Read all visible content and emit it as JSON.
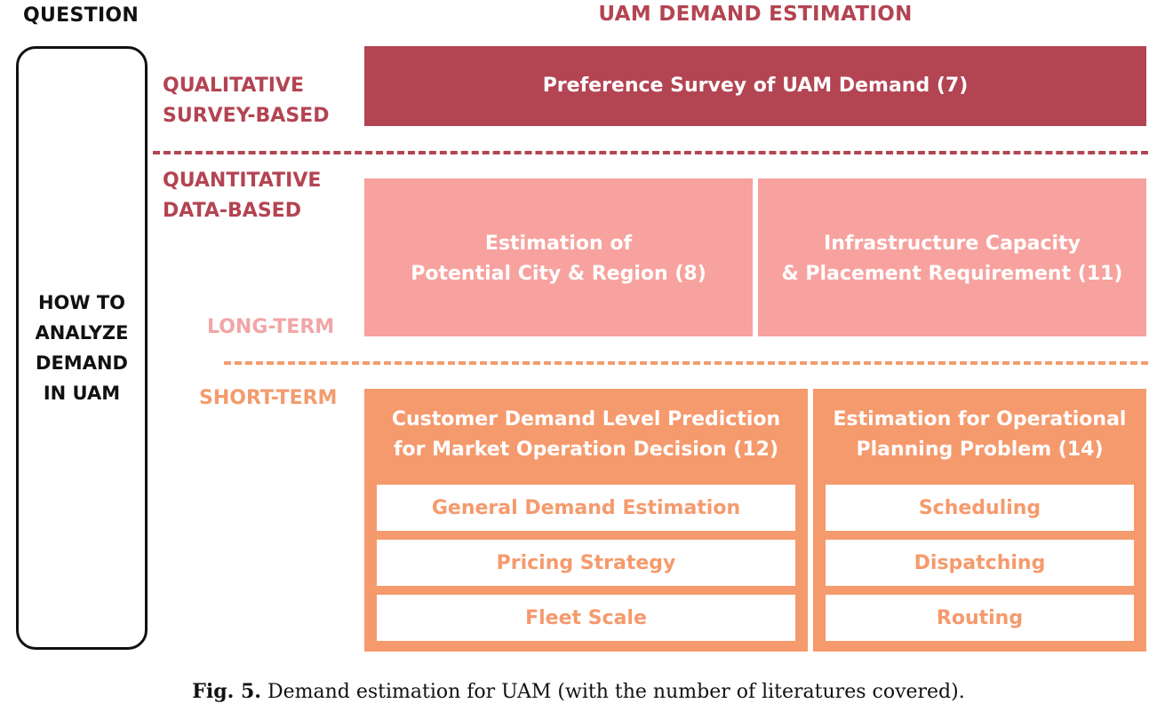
{
  "question_heading": "QUESTION",
  "main_heading": "UAM DEMAND ESTIMATION",
  "question_box": {
    "lines": [
      "HOW TO",
      "ANALYZE",
      "DEMAND",
      "IN UAM"
    ]
  },
  "labels": {
    "qualitative": [
      "QUALITATIVE",
      "SURVEY-BASED"
    ],
    "quantitative": [
      "QUANTITATIVE",
      "DATA-BASED"
    ],
    "long_term": "LONG-TERM",
    "short_term": "SHORT-TERM"
  },
  "boxes": {
    "survey": "Preference Survey of UAM Demand (7)",
    "city": [
      "Estimation of",
      "Potential City & Region (8)"
    ],
    "infrastructure": [
      "Infrastructure Capacity",
      "& Placement Requirement (11)"
    ],
    "customer": {
      "title": [
        "Customer Demand Level Prediction",
        "for Market Operation Decision (12)"
      ],
      "items": [
        "General Demand Estimation",
        "Pricing Strategy",
        "Fleet Scale"
      ]
    },
    "operational": {
      "title": [
        "Estimation for Operational",
        "Planning Problem (14)"
      ],
      "items": [
        "Scheduling",
        "Dispatching",
        "Routing"
      ]
    }
  },
  "caption": {
    "label": "Fig. 5.",
    "text": "Demand estimation for UAM (with the number of literatures covered)."
  },
  "colors": {
    "qualitative": "#b34452",
    "long_term": "#f7a29e",
    "short_term": "#f59a6d"
  }
}
